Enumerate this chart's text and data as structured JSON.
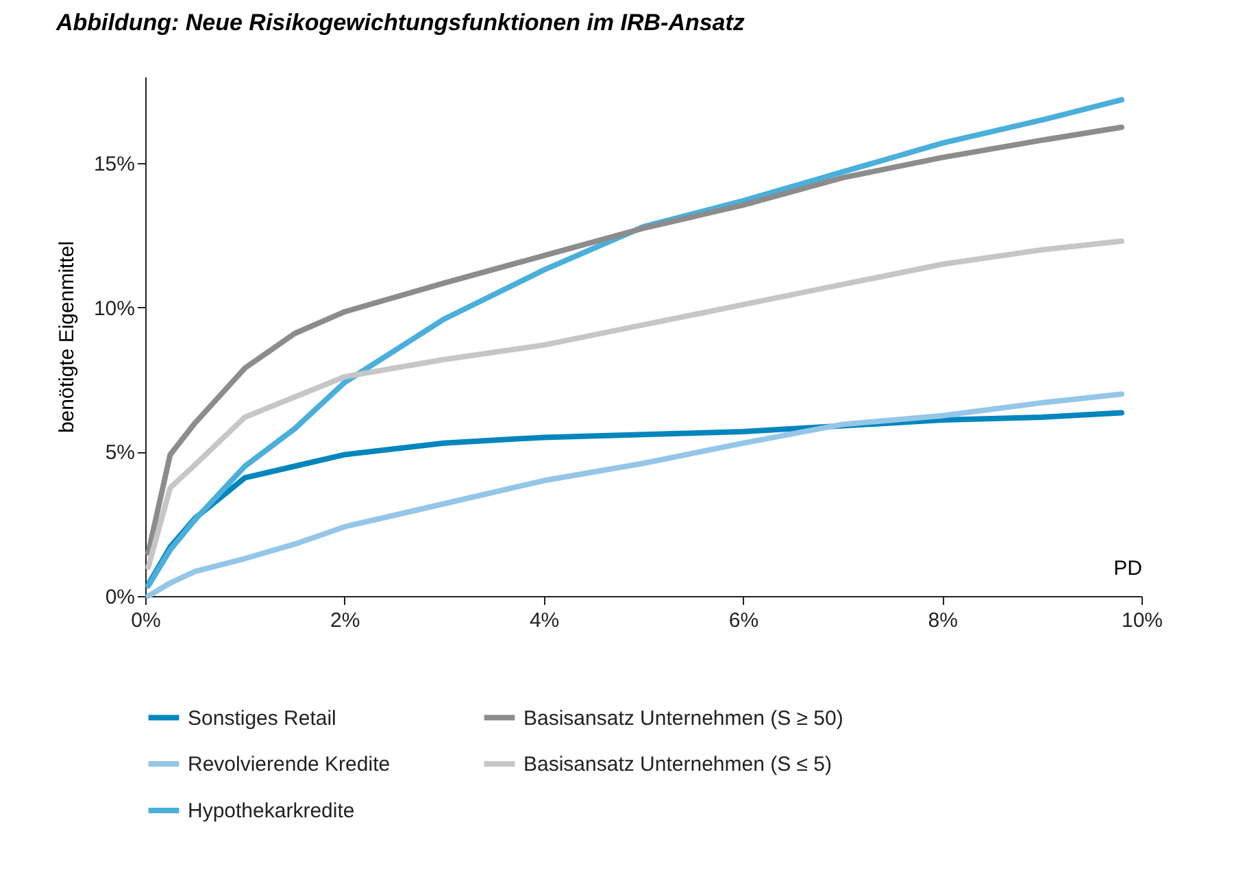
{
  "chart_data": {
    "type": "line",
    "title": "Abbildung: Neue Risikogewichtungsfunktionen im IRB-Ansatz",
    "xlabel": "PD",
    "ylabel": "benötigte Eigenmittel",
    "x": [
      0.03,
      0.25,
      0.5,
      1,
      1.5,
      2,
      3,
      4,
      5,
      6,
      7,
      8,
      9,
      9.8
    ],
    "series": [
      {
        "name": "Sonstiges Retail",
        "color": "#0085bd",
        "values": [
          0.4,
          1.7,
          2.7,
          4.1,
          4.5,
          4.9,
          5.3,
          5.5,
          5.6,
          5.7,
          5.9,
          6.1,
          6.2,
          6.35
        ]
      },
      {
        "name": "Revolvierende Kredite",
        "color": "#94c6e7",
        "values": [
          0.0,
          0.45,
          0.85,
          1.3,
          1.8,
          2.4,
          3.2,
          4.0,
          4.6,
          5.3,
          5.95,
          6.25,
          6.7,
          7.0
        ]
      },
      {
        "name": "Hypothekarkredite",
        "color": "#4aafda",
        "values": [
          0.35,
          1.6,
          2.65,
          4.5,
          5.8,
          7.4,
          9.6,
          11.3,
          12.8,
          13.7,
          14.7,
          15.7,
          16.5,
          17.2
        ]
      },
      {
        "name": "Basisansatz Unternehmen (S ≥ 50)",
        "color": "#8c8c8c",
        "values": [
          1.5,
          4.9,
          6.0,
          7.9,
          9.1,
          9.85,
          10.85,
          11.8,
          12.75,
          13.55,
          14.5,
          15.2,
          15.8,
          16.25
        ]
      },
      {
        "name": "Basisansatz Unternehmen (S ≤ 5)",
        "color": "#c6c6c6",
        "values": [
          1.0,
          3.75,
          4.55,
          6.2,
          6.9,
          7.6,
          8.2,
          8.7,
          9.4,
          10.1,
          10.8,
          11.5,
          12.0,
          12.3
        ]
      }
    ],
    "xlim": [
      0,
      10
    ],
    "ylim": [
      0,
      18
    ],
    "xticks": [
      {
        "value": 0,
        "label": "0%"
      },
      {
        "value": 2,
        "label": "2%"
      },
      {
        "value": 4,
        "label": "4%"
      },
      {
        "value": 6,
        "label": "6%"
      },
      {
        "value": 8,
        "label": "8%"
      },
      {
        "value": 10,
        "label": "10%"
      }
    ],
    "yticks": [
      {
        "value": 0,
        "label": "0%"
      },
      {
        "value": 5,
        "label": "5%"
      },
      {
        "value": 10,
        "label": "10%"
      },
      {
        "value": 15,
        "label": "15%"
      }
    ],
    "grid": false,
    "legend": "bottom",
    "line_style": "solid",
    "marker": "none"
  }
}
